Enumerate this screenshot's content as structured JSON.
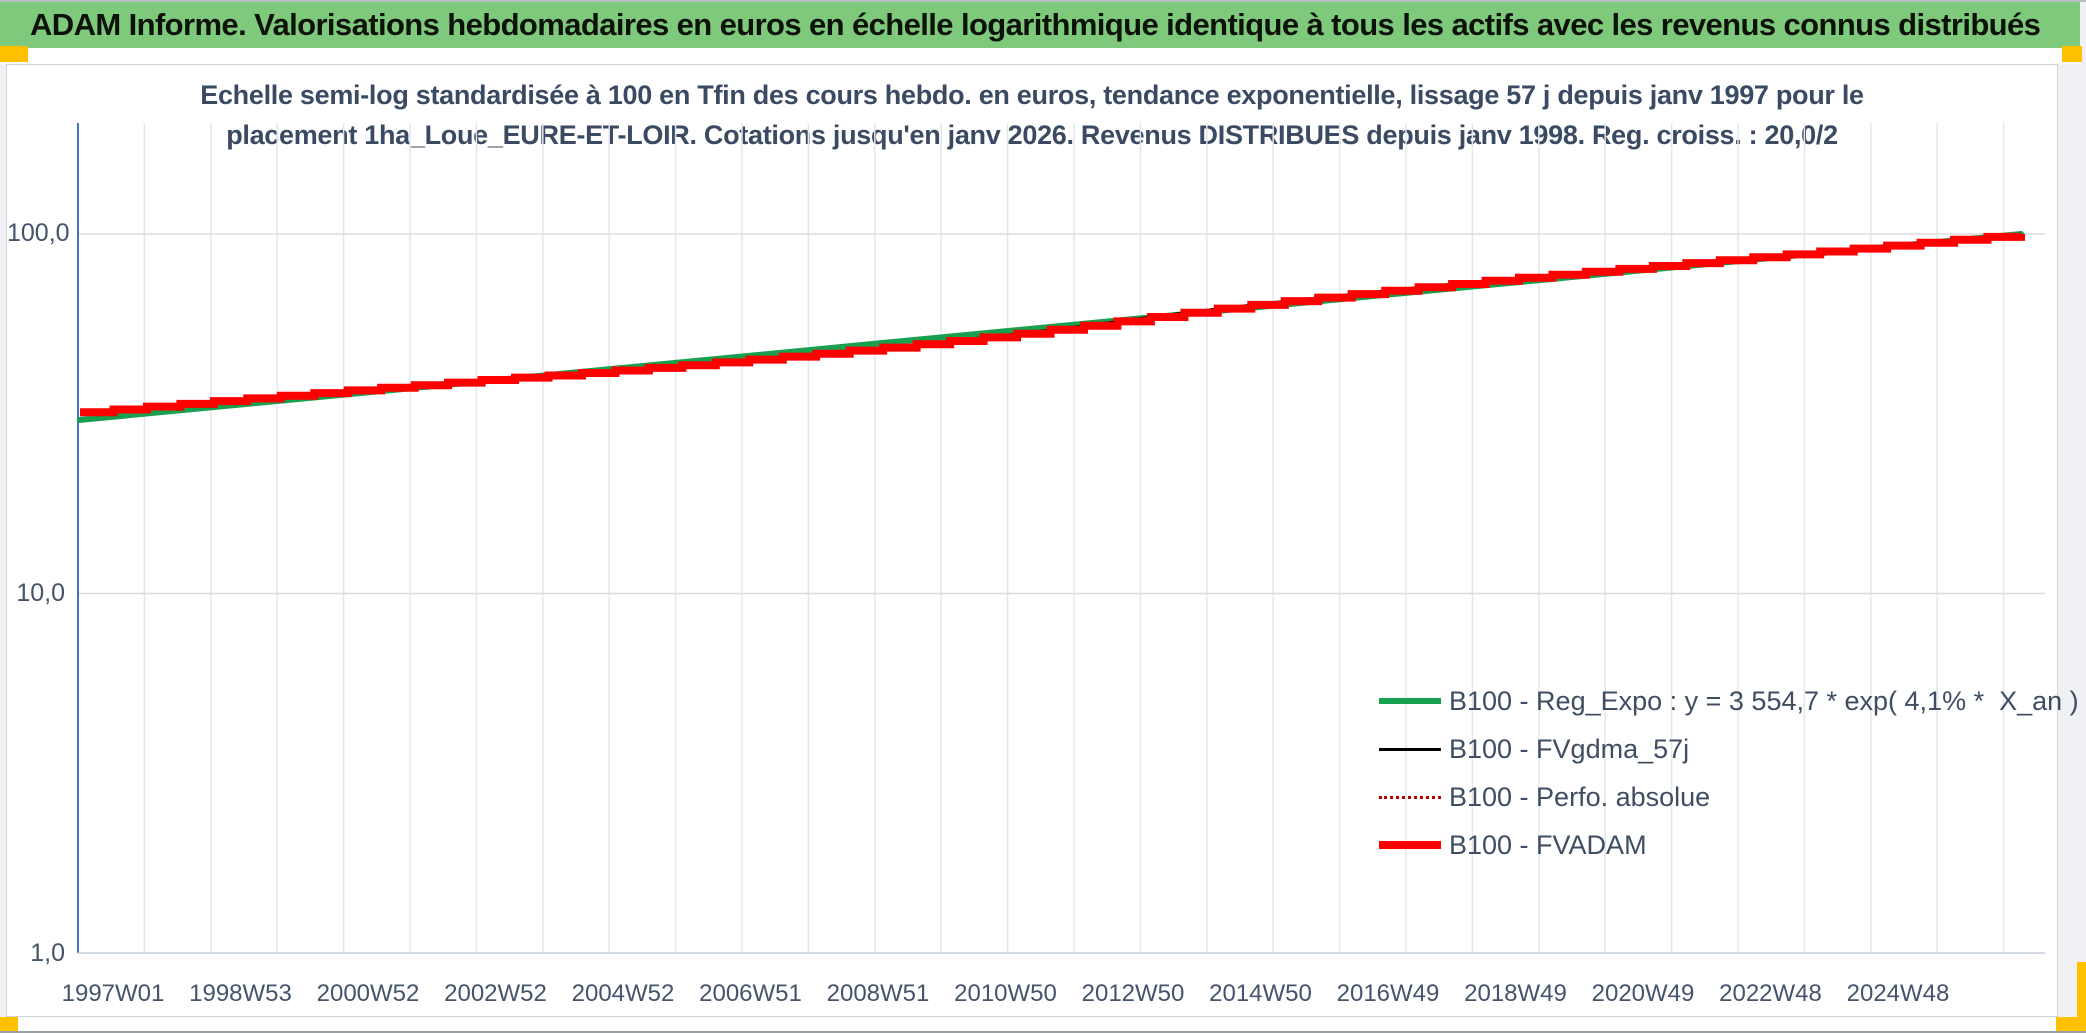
{
  "header": {
    "title": "ADAM Informe. Valorisations hebdomadaires en euros en échelle logarithmique identique à tous les actifs avec les revenus connus distribués"
  },
  "accent_colors": {
    "header_green": "#7ec97c",
    "corner_orange": "#ffc000",
    "axis_blue": "#4472c4",
    "text_navy": "#44546a"
  },
  "chart_data": {
    "type": "line",
    "title_line1": "Echelle semi-log standardisée à 100 en Tfin des cours hebdo. en euros, tendance exponentielle, lissage 57 j depuis janv 1997 pour le",
    "title_line2": "placement 1ha_Loue_EURE-ET-LOIR. Cotations jusqu'en janv 2026. Revenus DISTRIBUES depuis janv 1998. Reg. croiss. : 20,0/2",
    "y_scale": "log",
    "ylim": [
      1,
      200
    ],
    "grid": true,
    "legend_position": "lower-right",
    "y_ticks": [
      {
        "label": "100,0",
        "value": 100
      },
      {
        "label": "10,0",
        "value": 10
      },
      {
        "label": "1,0",
        "value": 1
      }
    ],
    "x_ticks": [
      "1997W01",
      "1998W53",
      "2000W52",
      "2002W52",
      "2004W52",
      "2006W51",
      "2008W51",
      "2010W50",
      "2012W50",
      "2014W50",
      "2016W49",
      "2018W49",
      "2020W49",
      "2022W48",
      "2024W48"
    ],
    "x_range_years": [
      1997,
      2026
    ],
    "series": [
      {
        "name": "B100 - Reg_Expo : y = 3 554,7 * exp( 4,1% *  X_an )",
        "type": "exp_trend",
        "color": "#17a14f",
        "width": 6,
        "start_value": 30.4,
        "end_value": 100.0,
        "years": 29
      },
      {
        "name": "B100 - FVgdma_57j",
        "type": "smooth",
        "color": "#000000",
        "width": 2.5
      },
      {
        "name": "B100 - Perfo. absolue",
        "type": "dotted",
        "color": "#c00000",
        "width": 2
      },
      {
        "name": "B100 - FVADAM",
        "type": "steps",
        "color": "#fe0000",
        "width": 8,
        "start_value": 31.9,
        "end_value": 100.0
      }
    ],
    "fvadam_deviation_from_trend_pct": [
      [
        0,
        5.0
      ],
      [
        1,
        4.5
      ],
      [
        2,
        3.9
      ],
      [
        3,
        3.2
      ],
      [
        4,
        2.5
      ],
      [
        5,
        1.7
      ],
      [
        6,
        0.9
      ],
      [
        6.5,
        0.4
      ],
      [
        7,
        -0.3
      ],
      [
        8,
        -1.2
      ],
      [
        9,
        -1.9
      ],
      [
        10,
        -2.4
      ],
      [
        11,
        -2.7
      ],
      [
        12,
        -2.9
      ],
      [
        13,
        -2.8
      ],
      [
        14,
        -2.3
      ],
      [
        15,
        -1.3
      ],
      [
        15.8,
        -0.1
      ],
      [
        16.5,
        0.9
      ],
      [
        17,
        1.5
      ],
      [
        18,
        2.2
      ],
      [
        19,
        2.6
      ],
      [
        20,
        2.9
      ],
      [
        21,
        2.9
      ],
      [
        22,
        2.7
      ],
      [
        23,
        2.3
      ],
      [
        24,
        1.9
      ],
      [
        25,
        1.5
      ],
      [
        26,
        1.1
      ],
      [
        27,
        0.8
      ],
      [
        28,
        0.4
      ],
      [
        29,
        0.0
      ]
    ]
  }
}
